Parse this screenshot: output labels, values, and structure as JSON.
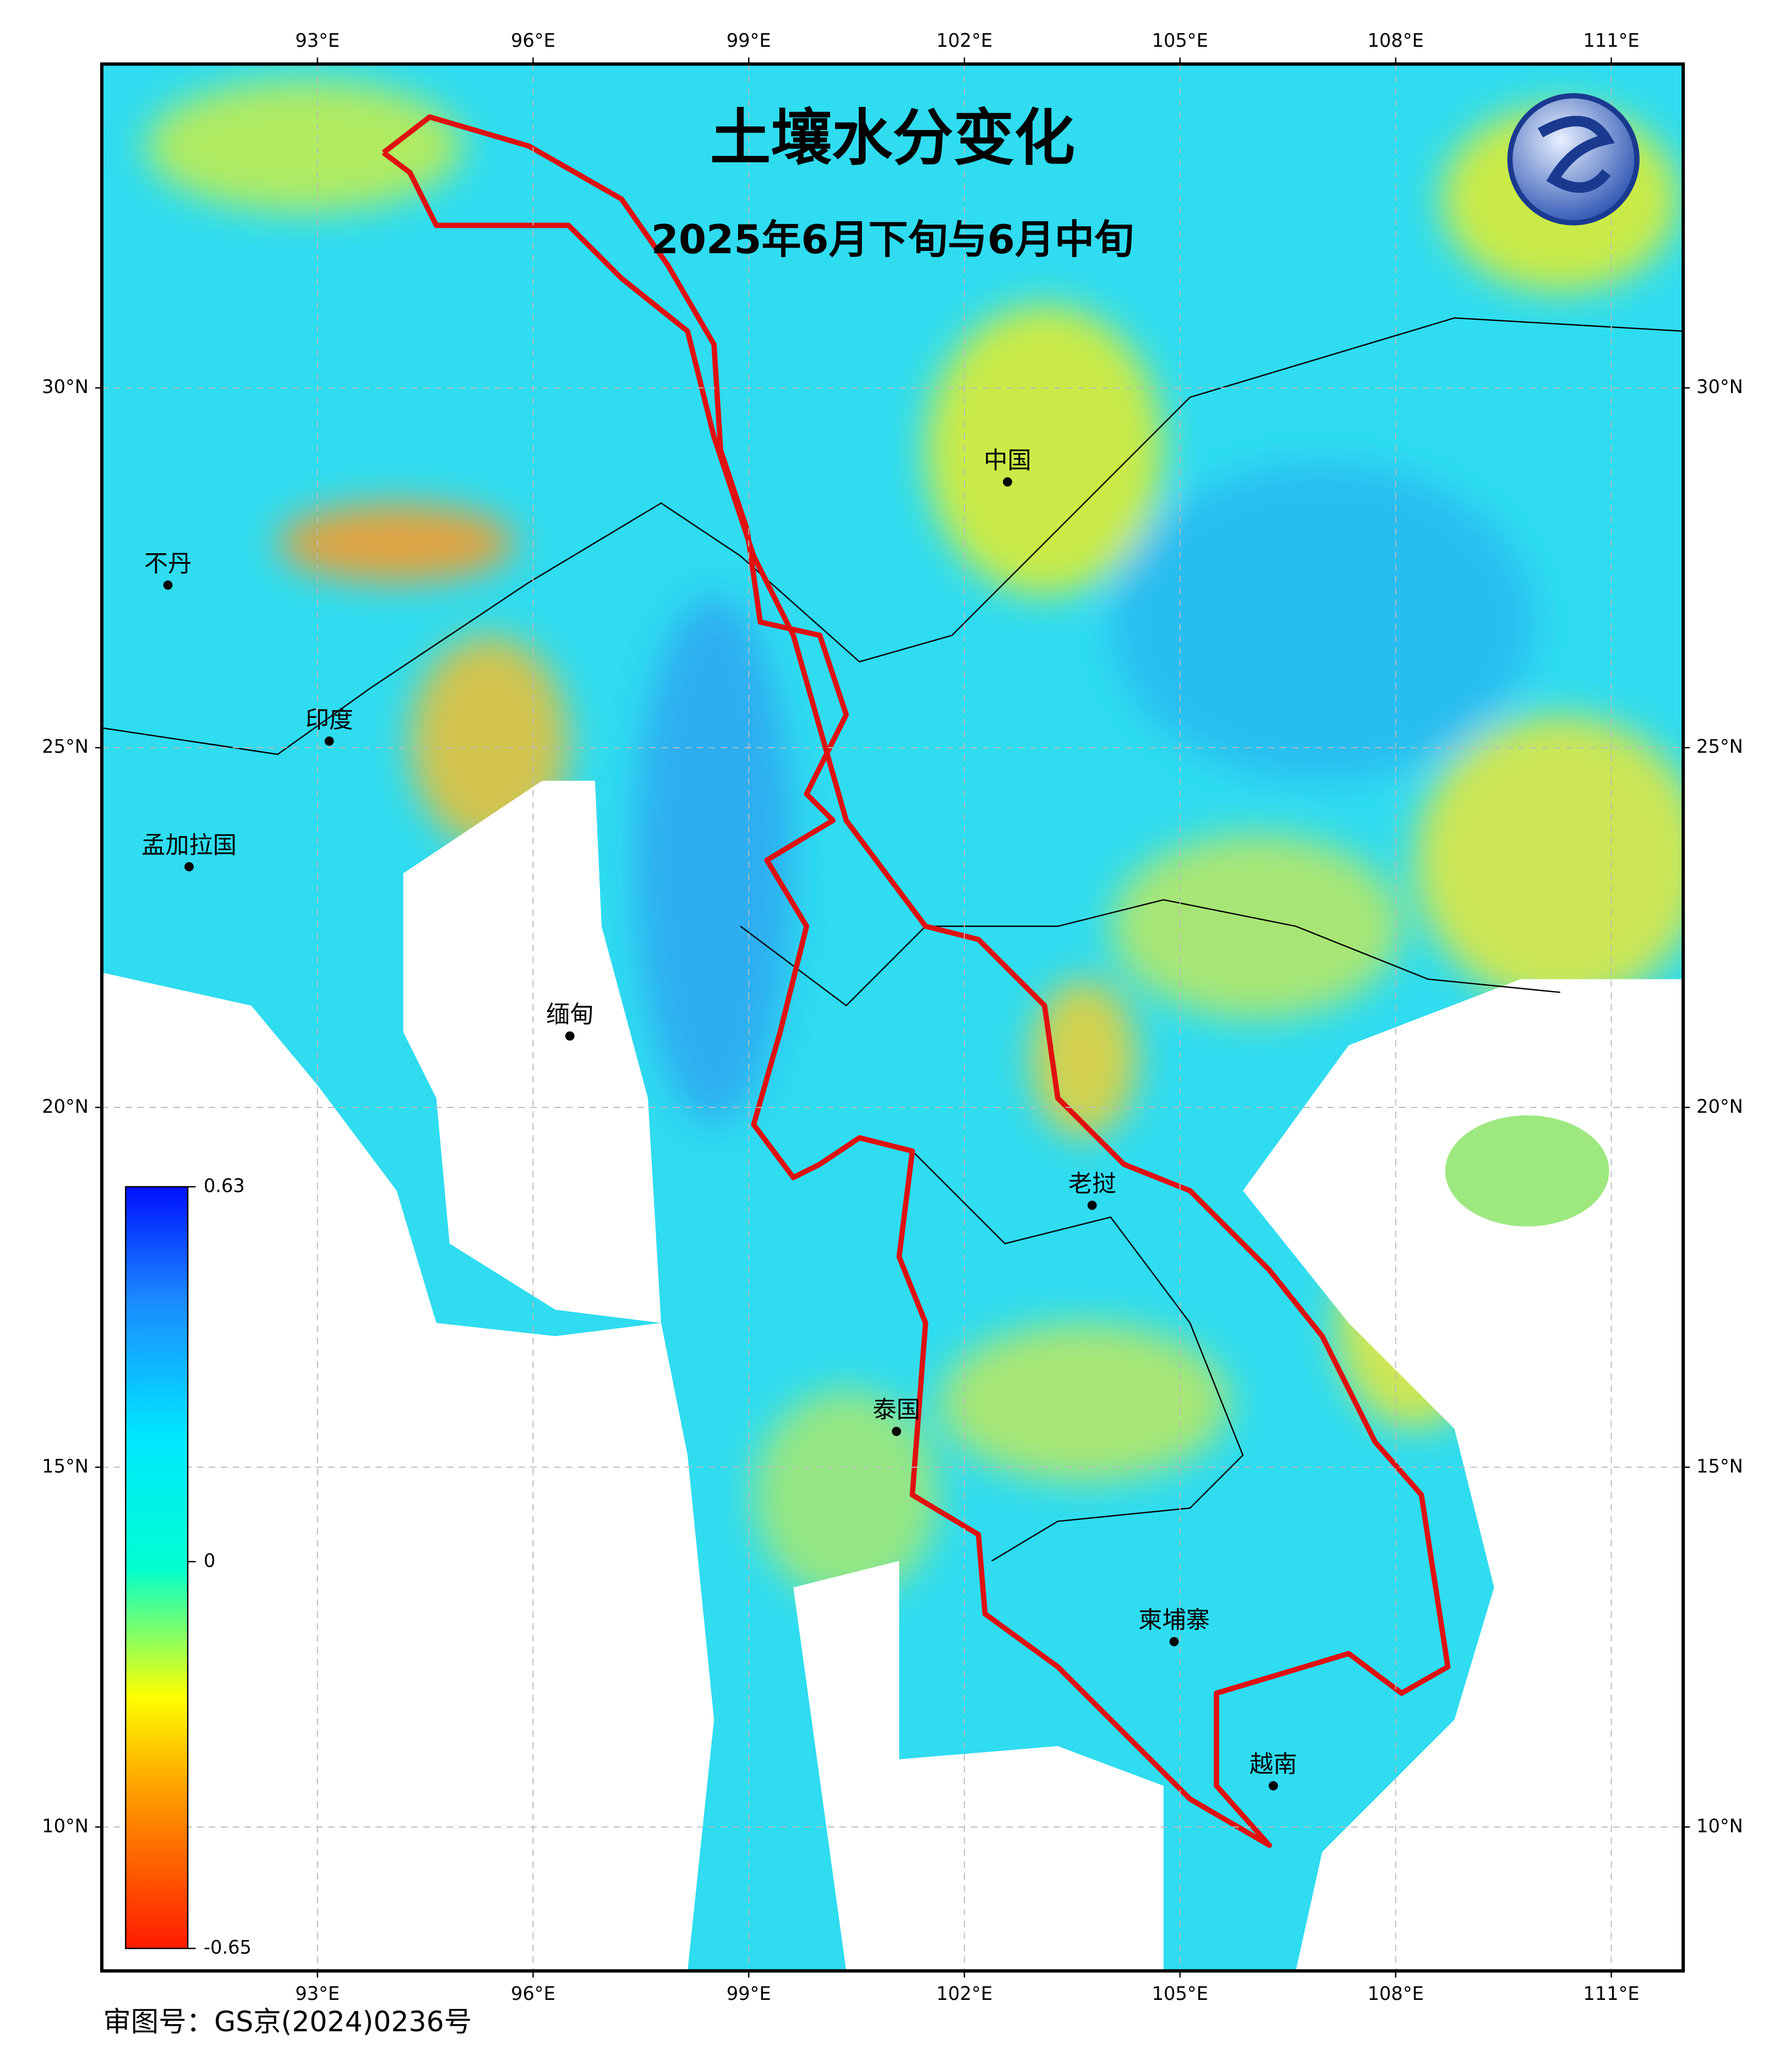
{
  "map": {
    "title": "土壤水分变化",
    "subtitle": "2025年6月下旬与6月中旬",
    "xlim": [
      90,
      112
    ],
    "ylim": [
      8,
      34.5
    ],
    "xticks": [
      {
        "value": 93,
        "label": "93°E"
      },
      {
        "value": 96,
        "label": "96°E"
      },
      {
        "value": 99,
        "label": "99°E"
      },
      {
        "value": 102,
        "label": "102°E"
      },
      {
        "value": 105,
        "label": "105°E"
      },
      {
        "value": 108,
        "label": "108°E"
      },
      {
        "value": 111,
        "label": "111°E"
      }
    ],
    "yticks": [
      {
        "value": 30,
        "label": "30°N"
      },
      {
        "value": 25,
        "label": "25°N"
      },
      {
        "value": 20,
        "label": "20°N"
      },
      {
        "value": 15,
        "label": "15°N"
      },
      {
        "value": 10,
        "label": "10°N"
      }
    ],
    "grid": true,
    "places": [
      "中国",
      "不丹",
      "印度",
      "孟加拉国",
      "缅甸",
      "老挝",
      "泰国",
      "柬埔寨",
      "越南"
    ],
    "colorbar": {
      "lim": [
        -0.65,
        0.63
      ],
      "ticks": [
        0.63,
        0,
        -0.65
      ]
    },
    "footer": "审图号：GS京(2024)0236号"
  }
}
